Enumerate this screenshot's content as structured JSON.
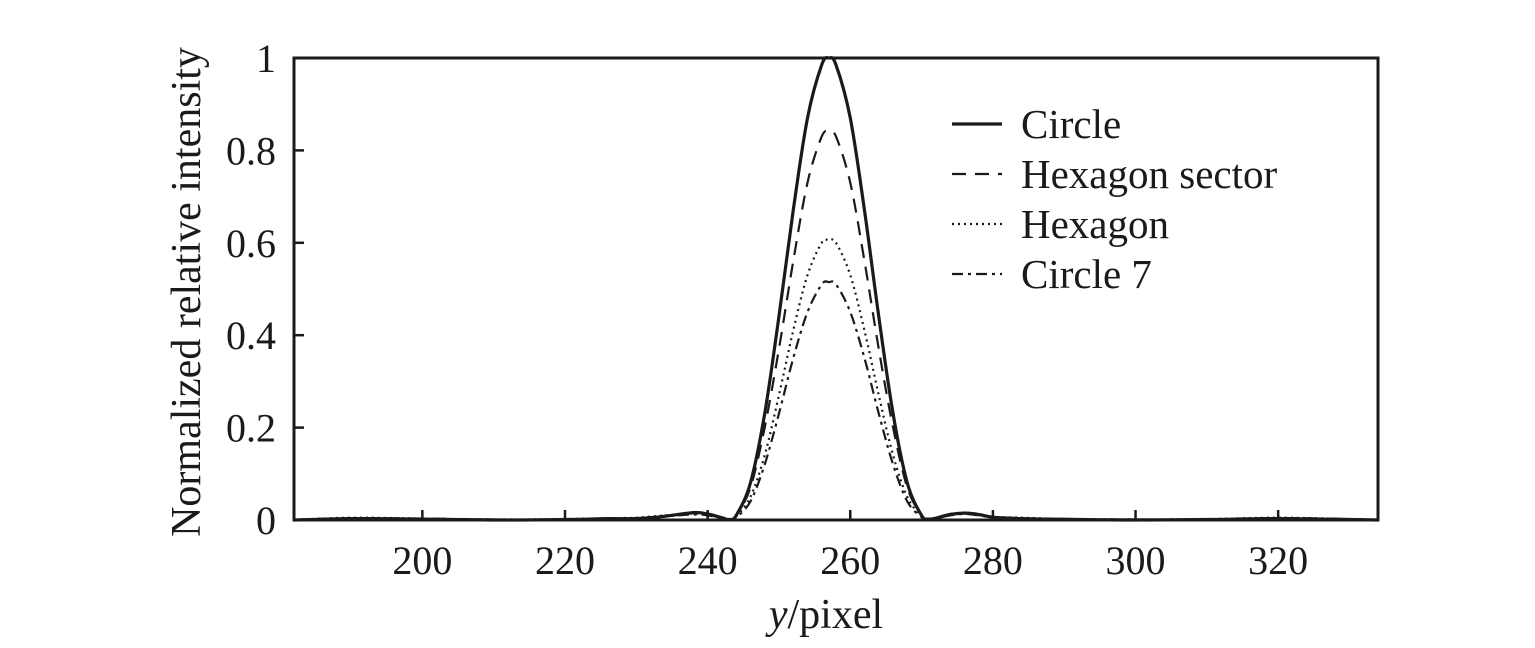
{
  "chart_data": {
    "type": "line",
    "title": "",
    "xlabel_var": "y",
    "xlabel_unit": "/pixel",
    "ylabel": "Normalized relative intensity",
    "xlim": [
      182,
      334
    ],
    "ylim": [
      0,
      1
    ],
    "xticks": [
      200,
      220,
      240,
      260,
      280,
      300,
      320
    ],
    "yticks": [
      0,
      0.2,
      0.4,
      0.6,
      0.8,
      1
    ],
    "ytick_labels": [
      "0",
      "0.2",
      "0.4",
      "0.6",
      "0.8",
      "1"
    ],
    "grid": false,
    "legend_position": "top-right",
    "colors": {
      "line": "#1a1a1a",
      "background": "#ffffff"
    },
    "series": [
      {
        "name": "Circle",
        "style": "solid",
        "x": [
          182,
          190,
          200,
          210,
          220,
          226,
          230,
          234,
          238,
          240,
          242,
          243,
          244,
          246,
          248,
          250,
          252,
          254,
          256,
          257,
          258,
          260,
          262,
          264,
          266,
          268,
          270,
          271,
          272,
          274,
          276,
          278,
          280,
          284,
          288,
          292,
          300,
          310,
          320,
          330,
          334
        ],
        "y": [
          0,
          0.003,
          0.002,
          0,
          0.001,
          0.003,
          0.003,
          0.008,
          0.016,
          0.013,
          0.005,
          0.001,
          0.01,
          0.08,
          0.23,
          0.44,
          0.67,
          0.87,
          0.985,
          1.0,
          0.985,
          0.87,
          0.67,
          0.44,
          0.23,
          0.08,
          0.01,
          0.002,
          0.004,
          0.012,
          0.015,
          0.012,
          0.006,
          0.003,
          0.002,
          0.001,
          0,
          0.001,
          0.003,
          0.001,
          0
        ]
      },
      {
        "name": "Hexagon sector",
        "style": "dashed",
        "x": [
          182,
          190,
          200,
          210,
          220,
          226,
          230,
          234,
          238,
          240,
          242,
          243,
          244,
          246,
          248,
          250,
          252,
          254,
          256,
          257,
          258,
          260,
          262,
          264,
          266,
          268,
          270,
          271,
          272,
          274,
          276,
          278,
          280,
          284,
          288,
          292,
          300,
          310,
          320,
          330,
          334
        ],
        "y": [
          0,
          0.004,
          0.003,
          0.001,
          0.001,
          0.003,
          0.004,
          0.009,
          0.015,
          0.012,
          0.005,
          0.002,
          0.01,
          0.07,
          0.2,
          0.37,
          0.56,
          0.73,
          0.83,
          0.84,
          0.83,
          0.73,
          0.56,
          0.37,
          0.2,
          0.07,
          0.01,
          0.003,
          0.005,
          0.013,
          0.016,
          0.013,
          0.007,
          0.004,
          0.002,
          0.001,
          0.001,
          0.001,
          0.004,
          0.002,
          0
        ]
      },
      {
        "name": "Hexagon",
        "style": "dotted",
        "x": [
          182,
          190,
          200,
          210,
          220,
          226,
          230,
          234,
          238,
          240,
          242,
          243,
          244,
          246,
          248,
          250,
          252,
          254,
          256,
          257,
          258,
          260,
          262,
          264,
          266,
          268,
          270,
          271,
          272,
          274,
          276,
          278,
          280,
          284,
          288,
          292,
          300,
          310,
          320,
          330,
          334
        ],
        "y": [
          0,
          0.005,
          0.003,
          0.001,
          0.002,
          0.004,
          0.005,
          0.01,
          0.014,
          0.011,
          0.005,
          0.002,
          0.008,
          0.05,
          0.14,
          0.27,
          0.41,
          0.53,
          0.6,
          0.605,
          0.6,
          0.53,
          0.41,
          0.27,
          0.14,
          0.05,
          0.008,
          0.003,
          0.005,
          0.012,
          0.015,
          0.012,
          0.007,
          0.005,
          0.003,
          0.002,
          0.001,
          0.002,
          0.005,
          0.002,
          0
        ]
      },
      {
        "name": "Circle 7",
        "style": "dashdot",
        "x": [
          182,
          190,
          200,
          210,
          220,
          226,
          230,
          234,
          238,
          240,
          242,
          243,
          244,
          246,
          248,
          250,
          252,
          254,
          256,
          257,
          258,
          260,
          262,
          264,
          266,
          268,
          270,
          271,
          272,
          274,
          276,
          278,
          280,
          284,
          288,
          292,
          300,
          310,
          320,
          330,
          334
        ],
        "y": [
          0,
          0.004,
          0.002,
          0.001,
          0.001,
          0.003,
          0.004,
          0.008,
          0.012,
          0.01,
          0.004,
          0.001,
          0.006,
          0.04,
          0.12,
          0.23,
          0.35,
          0.45,
          0.51,
          0.515,
          0.51,
          0.45,
          0.35,
          0.23,
          0.12,
          0.04,
          0.006,
          0.002,
          0.004,
          0.01,
          0.013,
          0.01,
          0.006,
          0.004,
          0.002,
          0.001,
          0.001,
          0.001,
          0.004,
          0.002,
          0
        ]
      }
    ]
  }
}
